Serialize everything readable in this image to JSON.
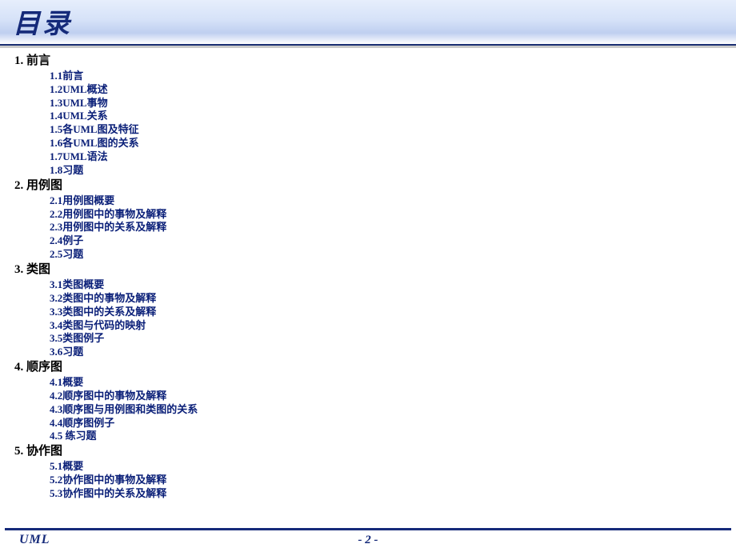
{
  "colors": {
    "title_text": "#152a7a",
    "chapter_text": "#000000",
    "section_text": "#0a1f78",
    "rule": "#152a7a",
    "header_gradient_top": "#e6eefc",
    "header_gradient_bottom": "#ffffff",
    "background": "#ffffff"
  },
  "typography": {
    "title_fontsize": 34,
    "chapter_fontsize": 15,
    "section_fontsize": 13,
    "footer_fontsize": 15
  },
  "title": "目录",
  "footer": {
    "brand": "UML",
    "page": "- 2 -"
  },
  "chapters": [
    {
      "num": "1.",
      "title": "前言",
      "sections": [
        "1.1前言",
        "1.2UML概述",
        "1.3UML事物",
        "1.4UML关系",
        "1.5各UML图及特征",
        "1.6各UML图的关系",
        "1.7UML语法",
        "1.8习题"
      ]
    },
    {
      "num": "2.",
      "title": "用例图",
      "sections": [
        "2.1用例图概要",
        "2.2用例图中的事物及解释",
        "2.3用例图中的关系及解释",
        "2.4例子",
        "2.5习题"
      ]
    },
    {
      "num": "3.",
      "title": "类图",
      "sections": [
        "3.1类图概要",
        "3.2类图中的事物及解释",
        "3.3类图中的关系及解释",
        "3.4类图与代码的映射",
        "3.5类图例子",
        "3.6习题"
      ]
    },
    {
      "num": "4.",
      "title": "顺序图",
      "sections": [
        "4.1概要",
        "4.2顺序图中的事物及解释",
        "4.3顺序图与用例图和类图的关系",
        "4.4顺序图例子",
        "4.5 练习题"
      ]
    },
    {
      "num": "5.",
      "title": "协作图",
      "sections": [
        "5.1概要",
        "5.2协作图中的事物及解释",
        "5.3协作图中的关系及解释"
      ]
    }
  ]
}
